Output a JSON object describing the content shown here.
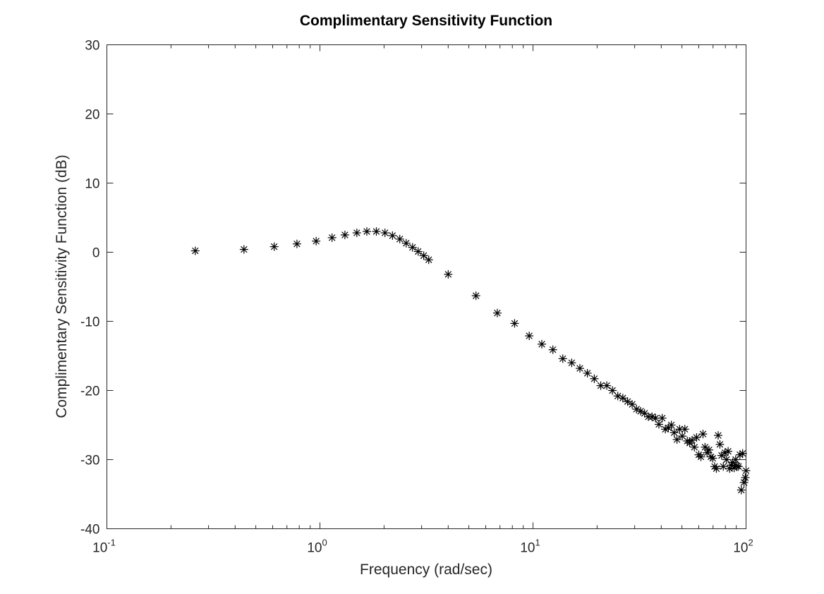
{
  "chart_data": {
    "type": "scatter",
    "title": "Complimentary Sensitivity Function",
    "xlabel": "Frequency (rad/sec)",
    "ylabel": "Complimentary Sensitivity Function (dB)",
    "x_scale": "log",
    "xlim": [
      0.1,
      100
    ],
    "ylim": [
      -40,
      30
    ],
    "x_ticks": [
      {
        "base": "10",
        "exp": "-1",
        "value": 0.1
      },
      {
        "base": "10",
        "exp": "0",
        "value": 1
      },
      {
        "base": "10",
        "exp": "1",
        "value": 10
      },
      {
        "base": "10",
        "exp": "2",
        "value": 100
      }
    ],
    "y_ticks": [
      {
        "label": "30",
        "value": 30
      },
      {
        "label": "20",
        "value": 20
      },
      {
        "label": "10",
        "value": 10
      },
      {
        "label": "0",
        "value": 0
      },
      {
        "label": "-10",
        "value": -10
      },
      {
        "label": "-20",
        "value": -20
      },
      {
        "label": "-30",
        "value": -30
      },
      {
        "label": "-40",
        "value": -40
      }
    ],
    "grid": false,
    "marker": "asterisk",
    "marker_color": "#000000",
    "points": [
      [
        0.26,
        0.2
      ],
      [
        0.44,
        0.4
      ],
      [
        0.61,
        0.8
      ],
      [
        0.78,
        1.2
      ],
      [
        0.96,
        1.6
      ],
      [
        1.14,
        2.1
      ],
      [
        1.31,
        2.5
      ],
      [
        1.49,
        2.8
      ],
      [
        1.66,
        3.0
      ],
      [
        1.84,
        3.0
      ],
      [
        2.02,
        2.8
      ],
      [
        2.19,
        2.4
      ],
      [
        2.37,
        1.9
      ],
      [
        2.54,
        1.3
      ],
      [
        2.72,
        0.7
      ],
      [
        2.89,
        0.1
      ],
      [
        3.07,
        -0.5
      ],
      [
        3.24,
        -1.1
      ],
      [
        4.0,
        -3.2
      ],
      [
        5.4,
        -6.3
      ],
      [
        6.8,
        -8.8
      ],
      [
        8.2,
        -10.3
      ],
      [
        9.6,
        -12.1
      ],
      [
        11.0,
        -13.3
      ],
      [
        12.4,
        -14.1
      ],
      [
        13.8,
        -15.4
      ],
      [
        15.2,
        -16.0
      ],
      [
        16.6,
        -16.8
      ],
      [
        18.0,
        -17.5
      ],
      [
        19.4,
        -18.3
      ],
      [
        20.8,
        -19.3
      ],
      [
        22.2,
        -19.3
      ],
      [
        23.6,
        -20.0
      ],
      [
        25.0,
        -20.8
      ],
      [
        26.4,
        -21.1
      ],
      [
        27.8,
        -21.6
      ],
      [
        29.2,
        -22.0
      ],
      [
        30.6,
        -22.7
      ],
      [
        32.0,
        -23.0
      ],
      [
        33.4,
        -23.3
      ],
      [
        34.8,
        -23.8
      ],
      [
        36.2,
        -23.8
      ],
      [
        37.6,
        -24.0
      ],
      [
        39.0,
        -24.9
      ],
      [
        40.4,
        -24.0
      ],
      [
        41.8,
        -25.6
      ],
      [
        43.2,
        -25.4
      ],
      [
        44.6,
        -25.0
      ],
      [
        46.0,
        -26.1
      ],
      [
        47.4,
        -27.1
      ],
      [
        48.8,
        -25.6
      ],
      [
        50.2,
        -26.6
      ],
      [
        51.6,
        -25.6
      ],
      [
        53.0,
        -27.3
      ],
      [
        54.4,
        -27.6
      ],
      [
        55.8,
        -27.2
      ],
      [
        57.2,
        -28.2
      ],
      [
        58.6,
        -26.8
      ],
      [
        60.0,
        -29.3
      ],
      [
        61.4,
        -29.6
      ],
      [
        62.8,
        -26.3
      ],
      [
        64.2,
        -28.2
      ],
      [
        65.6,
        -29.0
      ],
      [
        67.0,
        -28.6
      ],
      [
        68.4,
        -29.6
      ],
      [
        69.8,
        -29.8
      ],
      [
        71.2,
        -31.0
      ],
      [
        72.6,
        -31.3
      ],
      [
        74.0,
        -26.5
      ],
      [
        75.4,
        -27.8
      ],
      [
        76.8,
        -29.4
      ],
      [
        78.2,
        -31.0
      ],
      [
        79.6,
        -29.0
      ],
      [
        81.0,
        -30.0
      ],
      [
        82.4,
        -28.8
      ],
      [
        83.8,
        -31.3
      ],
      [
        85.2,
        -30.8
      ],
      [
        86.6,
        -30.4
      ],
      [
        88.0,
        -31.2
      ],
      [
        89.4,
        -30.0
      ],
      [
        90.8,
        -30.9
      ],
      [
        92.2,
        -31.0
      ],
      [
        93.6,
        -29.3
      ],
      [
        95.0,
        -34.4
      ],
      [
        96.4,
        -29.1
      ],
      [
        97.8,
        -33.3
      ],
      [
        99.2,
        -32.6
      ],
      [
        100.0,
        -31.6
      ]
    ]
  }
}
